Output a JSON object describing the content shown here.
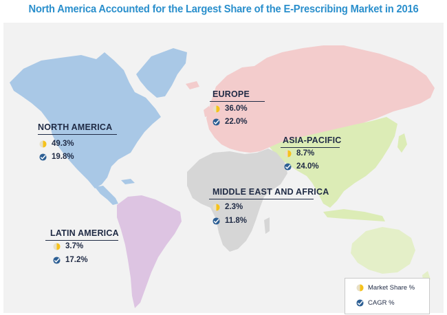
{
  "title": "North America Accounted for the Largest Share of the E-Prescribing Market in 2016",
  "colors": {
    "north_america": "#a9c8e6",
    "europe": "#f3cccc",
    "asia_pacific": "#dcecb6",
    "middle_east_africa": "#d6d6d6",
    "latin_america": "#ddc4e2",
    "oceania": "#e4efc8",
    "market_share_icon": "#f6c21b",
    "cagr_icon": "#2d5f94"
  },
  "regions": [
    {
      "key": "north_america",
      "name": "NORTH AMERICA",
      "market_share": "49.3%",
      "cagr": "19.8%"
    },
    {
      "key": "europe",
      "name": "EUROPE",
      "market_share": "36.0%",
      "cagr": "22.0%"
    },
    {
      "key": "asia_pacific",
      "name": "ASIA-PACIFIC",
      "market_share": "8.7%",
      "cagr": "24.0%"
    },
    {
      "key": "middle_east_africa",
      "name": "MIDDLE EAST AND AFRICA",
      "market_share": "2.3%",
      "cagr": "11.8%"
    },
    {
      "key": "latin_america",
      "name": "LATIN AMERICA",
      "market_share": "3.7%",
      "cagr": "17.2%"
    }
  ],
  "legend": {
    "market_share_label": "Market Share %",
    "cagr_label": "CAGR %",
    "market_share_icon": "pie-chart-icon",
    "cagr_icon": "growth-check-icon"
  }
}
